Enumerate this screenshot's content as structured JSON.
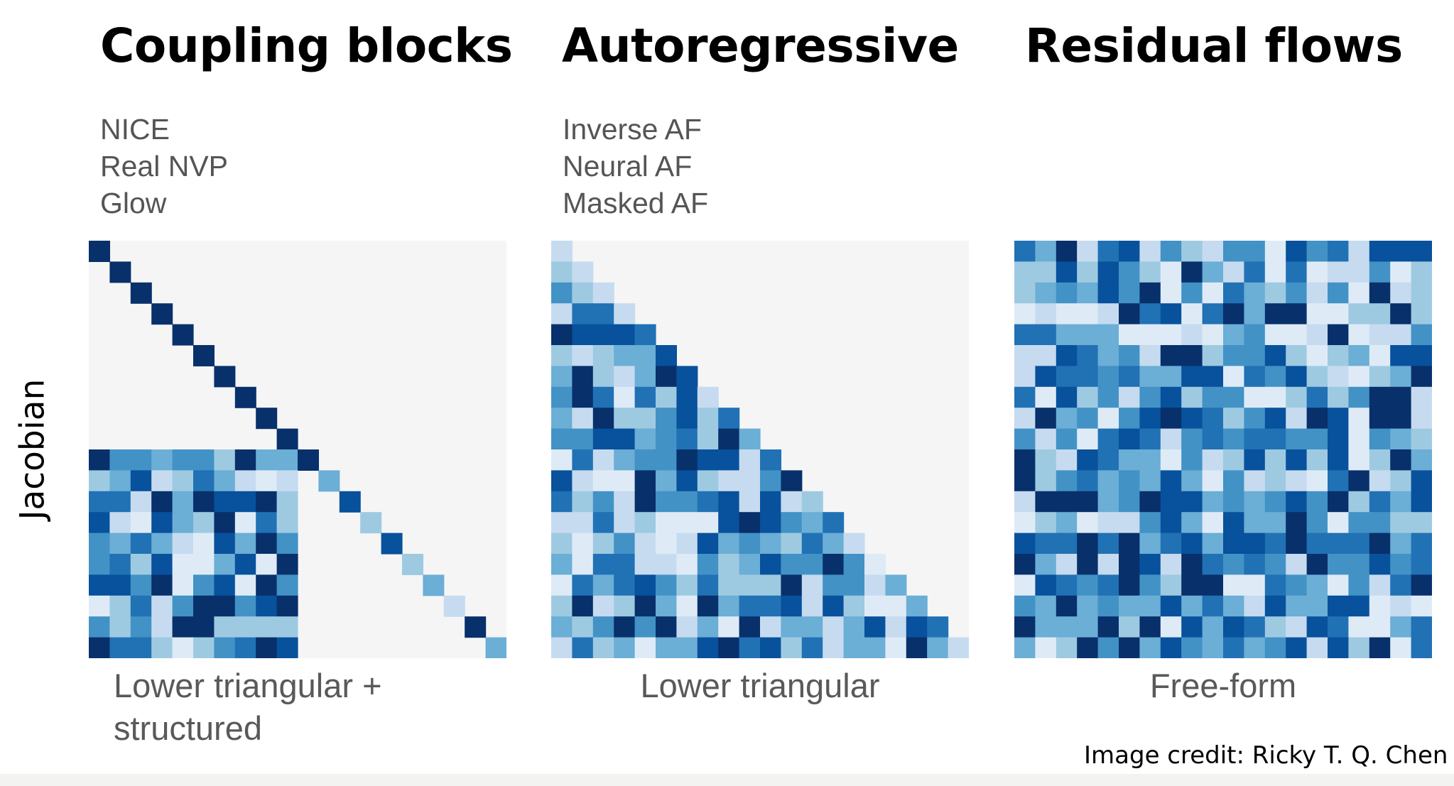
{
  "columns": [
    {
      "title": "Coupling blocks",
      "methods": [
        "NICE",
        "Real NVP",
        "Glow"
      ],
      "caption_lines": [
        "Lower triangular +",
        "structured"
      ],
      "pattern": "coupling"
    },
    {
      "title": "Autoregressive",
      "methods": [
        "Inverse AF",
        "Neural AF",
        "Masked AF"
      ],
      "caption_lines": [
        "Lower triangular"
      ],
      "pattern": "lower-triangular"
    },
    {
      "title": "Residual flows",
      "methods": [],
      "caption_lines": [
        "Free-form"
      ],
      "pattern": "dense"
    }
  ],
  "y_label": "Jacobian",
  "credit": "Image credit: Ricky T. Q. Chen",
  "matrix": {
    "size": 20,
    "colors": {
      "background": "#f5f5f5",
      "palette": [
        "#deebf7",
        "#c6dbef",
        "#9ecae1",
        "#6baed6",
        "#4292c6",
        "#2171b5",
        "#08519c",
        "#08306b"
      ]
    }
  }
}
